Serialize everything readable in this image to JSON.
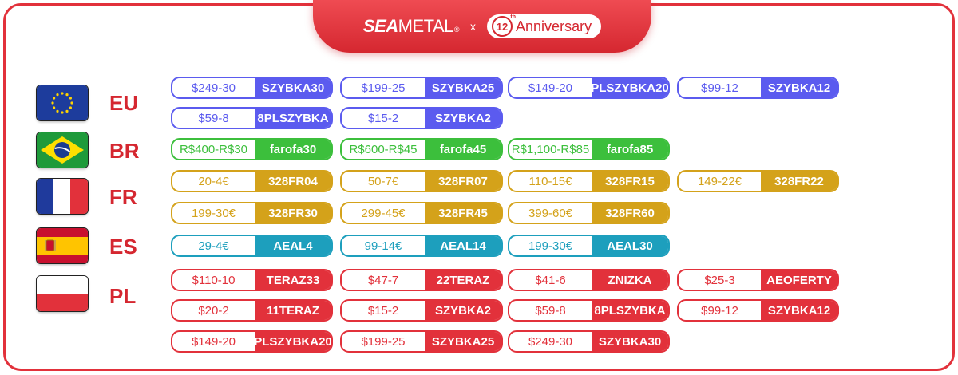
{
  "header": {
    "brand_sea": "SEA",
    "brand_metal": "METAL",
    "brand_reg": "®",
    "times": "x",
    "anniv_num": "12",
    "anniv_th": "th",
    "anniv_label": "Anniversary"
  },
  "colors": {
    "EU": "#5b5bef",
    "BR": "#3cbf3c",
    "FR": "#d4a21a",
    "ES": "#1d9fbd",
    "PL": "#e2313b"
  },
  "regions": [
    {
      "code": "EU",
      "flag": "eu-flag",
      "coupons": [
        {
          "amount": "$249-30",
          "code": "SZYBKA30"
        },
        {
          "amount": "$199-25",
          "code": "SZYBKA25"
        },
        {
          "amount": "$149-20",
          "code": "PLSZYBKA20"
        },
        {
          "amount": "$99-12",
          "code": "SZYBKA12"
        },
        {
          "amount": "$59-8",
          "code": "8PLSZYBKA"
        },
        {
          "amount": "$15-2",
          "code": "SZYBKA2"
        }
      ]
    },
    {
      "code": "BR",
      "flag": "brazil-flag",
      "coupons": [
        {
          "amount": "R$400-R$30",
          "code": "farofa30"
        },
        {
          "amount": "R$600-R$45",
          "code": "farofa45"
        },
        {
          "amount": "R$1,100-R$85",
          "code": "farofa85"
        }
      ]
    },
    {
      "code": "FR",
      "flag": "france-flag",
      "coupons": [
        {
          "amount": "20-4€",
          "code": "328FR04"
        },
        {
          "amount": "50-7€",
          "code": "328FR07"
        },
        {
          "amount": "110-15€",
          "code": "328FR15"
        },
        {
          "amount": "149-22€",
          "code": "328FR22"
        },
        {
          "amount": "199-30€",
          "code": "328FR30"
        },
        {
          "amount": "299-45€",
          "code": "328FR45"
        },
        {
          "amount": "399-60€",
          "code": "328FR60"
        }
      ]
    },
    {
      "code": "ES",
      "flag": "spain-flag",
      "coupons": [
        {
          "amount": "29-4€",
          "code": "AEAL4"
        },
        {
          "amount": "99-14€",
          "code": "AEAL14"
        },
        {
          "amount": "199-30€",
          "code": "AEAL30"
        }
      ]
    },
    {
      "code": "PL",
      "flag": "poland-flag",
      "coupons": [
        {
          "amount": "$110-10",
          "code": "TERAZ33"
        },
        {
          "amount": "$47-7",
          "code": "22TERAZ"
        },
        {
          "amount": "$41-6",
          "code": "ZNIZKA"
        },
        {
          "amount": "$25-3",
          "code": "AEOFERTY"
        },
        {
          "amount": "$20-2",
          "code": "11TERAZ"
        },
        {
          "amount": "$15-2",
          "code": "SZYBKA2"
        },
        {
          "amount": "$59-8",
          "code": "8PLSZYBKA"
        },
        {
          "amount": "$99-12",
          "code": "SZYBKA12"
        },
        {
          "amount": "$149-20",
          "code": "PLSZYBKA20"
        },
        {
          "amount": "$199-25",
          "code": "SZYBKA25"
        },
        {
          "amount": "$249-30",
          "code": "SZYBKA30"
        }
      ]
    }
  ]
}
